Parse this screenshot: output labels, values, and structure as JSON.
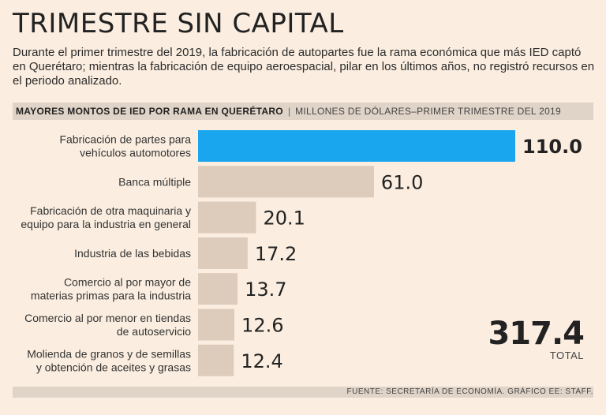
{
  "title": "TRIMESTRE SIN CAPITAL",
  "subtitle": "Durante el primer trimestre del 2019, la fabricación de autopartes fue la rama económica que más IED captó en Querétaro; mientras la fabricación de equipo aeroespacial, pilar en los últimos años, no registró recursos en el periodo analizado.",
  "header": {
    "bold": "MAYORES MONTOS DE IED POR RAMA EN QUERÉTARO",
    "separator": "|",
    "light": "MILLONES DE DÓLARES–PRIMER TRIMESTRE DEL 2019"
  },
  "total": {
    "value": "317.4",
    "label": "TOTAL"
  },
  "source": "FUENTE: SECRETARÍA DE ECONOMÍA. GRÁFICO EE: STAFF.",
  "colors": {
    "highlight": "#1aa6ee",
    "bar": "#ddcbbb",
    "background": "#fbeee0"
  },
  "chart_data": {
    "type": "bar",
    "orientation": "horizontal",
    "title": "MAYORES MONTOS DE IED POR RAMA EN QUERÉTARO",
    "units": "MILLONES DE DÓLARES–PRIMER TRIMESTRE DEL 2019",
    "categories": [
      [
        "Fabricación de partes para",
        "vehículos automotores"
      ],
      [
        "Banca múltiple"
      ],
      [
        "Fabricación de otra maquinaria y",
        "equipo para la industria en general"
      ],
      [
        "Industria de las bebidas"
      ],
      [
        "Comercio al por mayor de",
        "materias primas para la industria"
      ],
      [
        "Comercio al por menor en tiendas",
        "de autoservicio"
      ],
      [
        "Molienda de granos y de semillas",
        "y obtención de aceites y grasas"
      ]
    ],
    "values": [
      110.0,
      61.0,
      20.1,
      17.2,
      13.7,
      12.6,
      12.4
    ],
    "value_labels": [
      "110.0",
      "61.0",
      "20.1",
      "17.2",
      "13.7",
      "12.6",
      "12.4"
    ],
    "highlight_index": 0,
    "xlim": [
      0,
      110
    ],
    "grid": false,
    "legend": "none"
  }
}
